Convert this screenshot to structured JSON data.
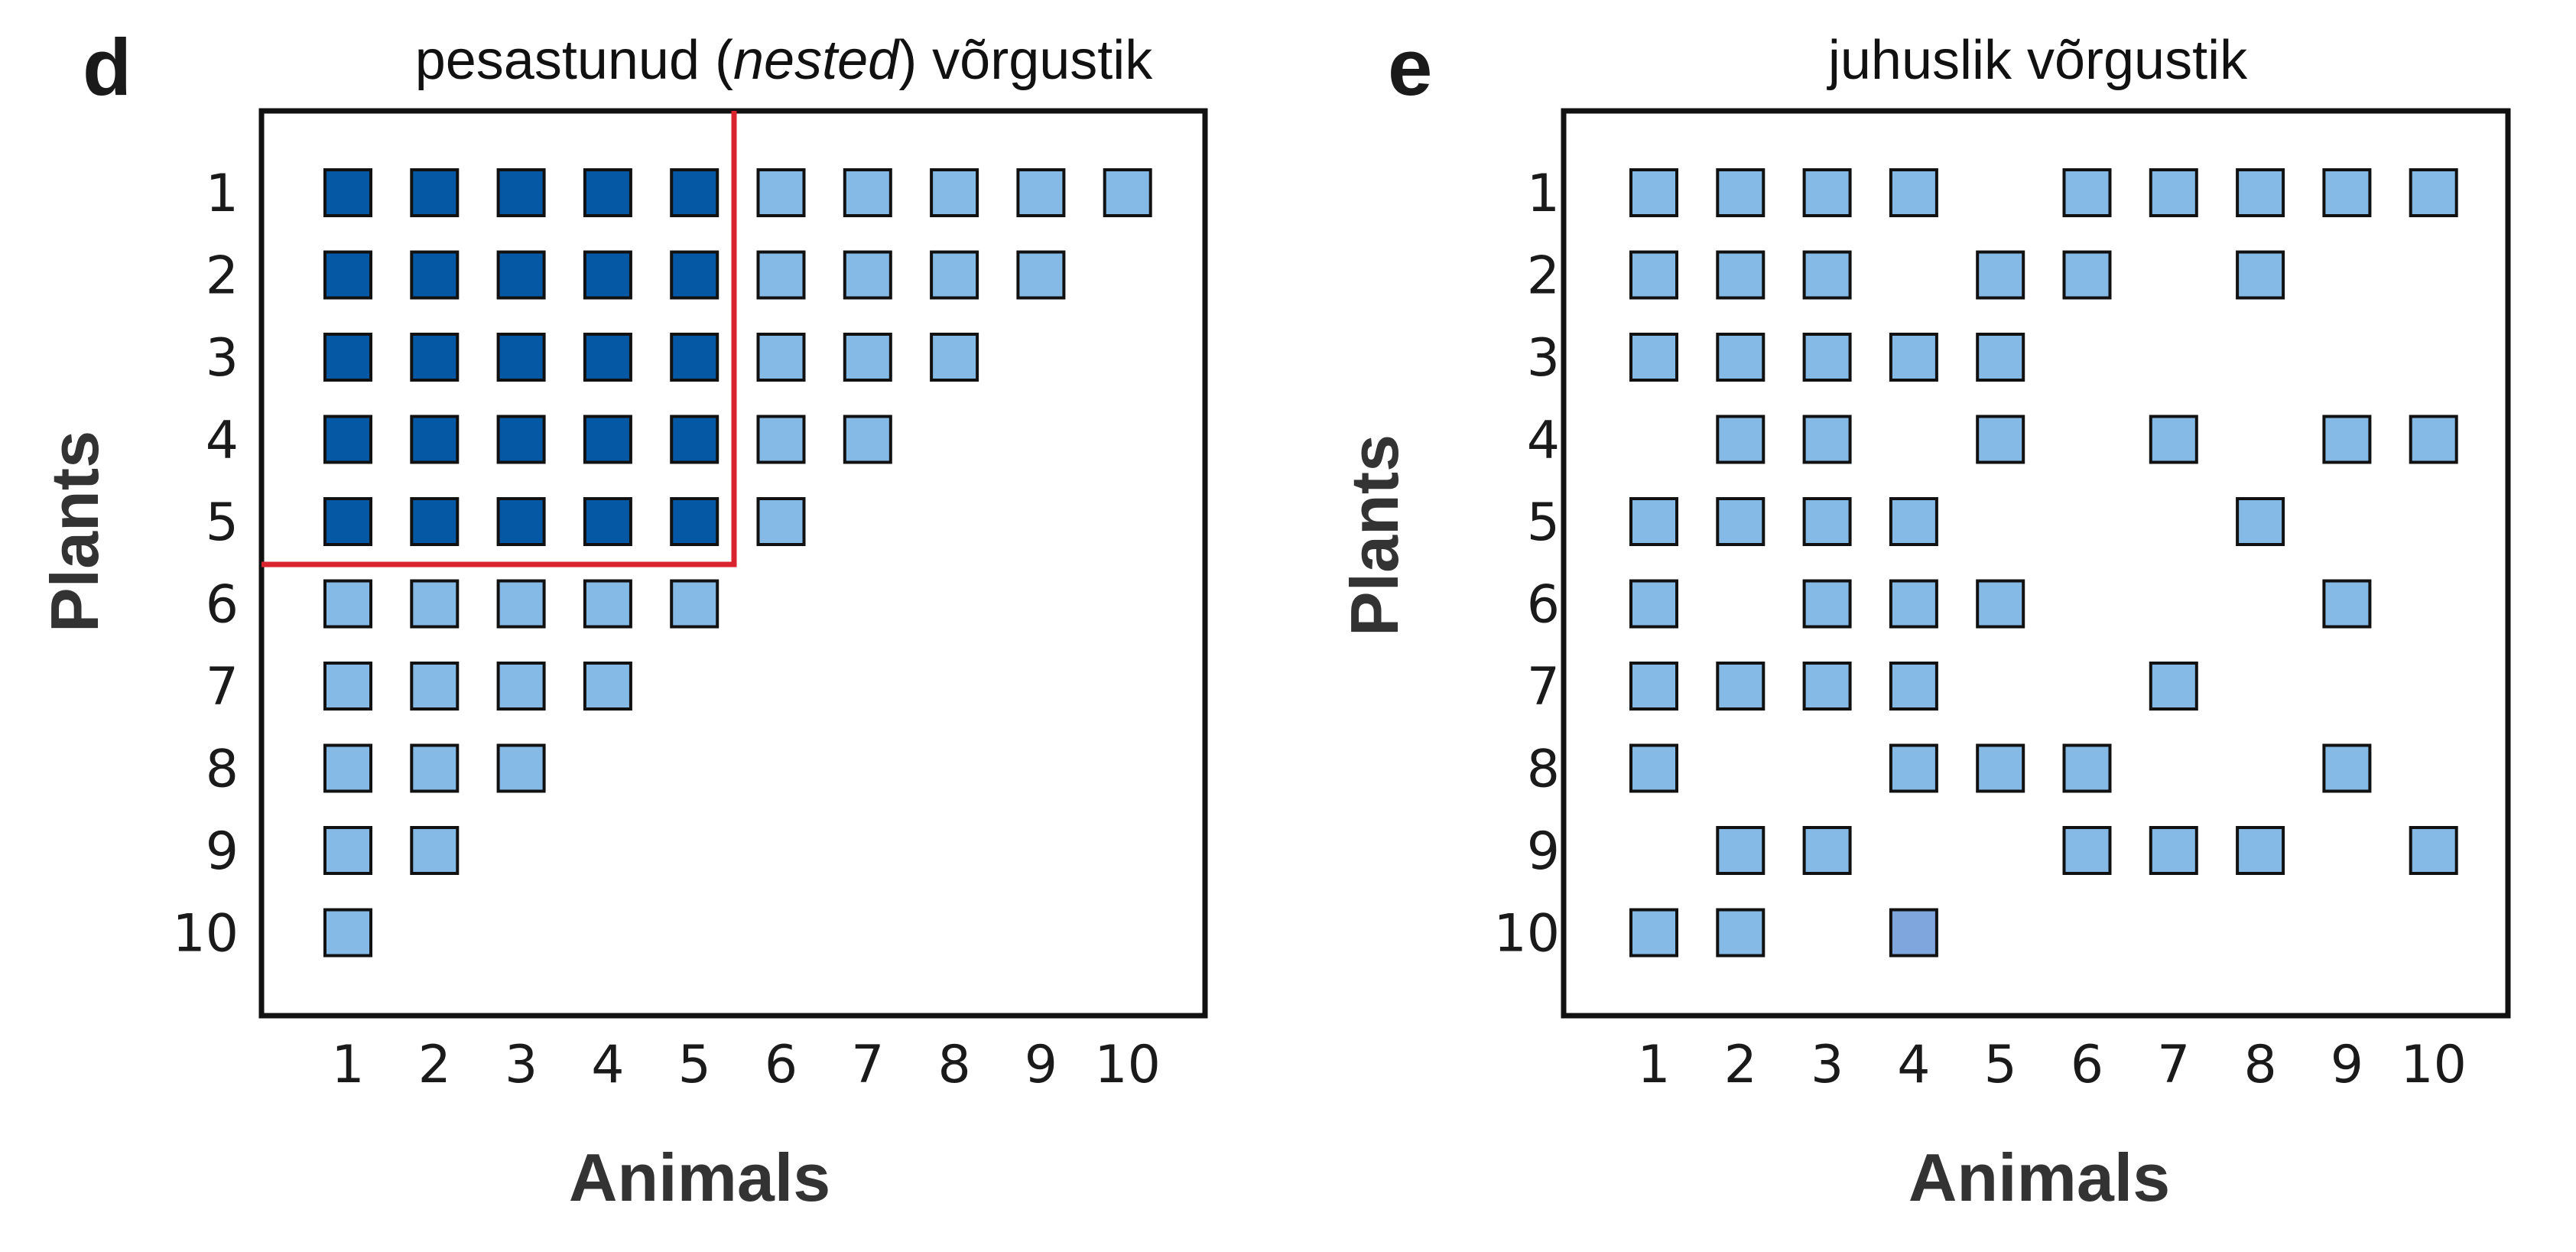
{
  "colors": {
    "dark_cell": "#0559a4",
    "light_cell": "#85b9e6",
    "accent_cell": "#7fa6dd",
    "cell_border": "#111111",
    "frame": "#111111",
    "highlight_line": "#d9232e"
  },
  "chart_data": [
    {
      "type": "heatmap",
      "panel_letter": "d",
      "title_before": "pesastunud (",
      "title_italic": "nested",
      "title_after": ") võrgustik",
      "xlabel": "Animals",
      "ylabel": "Plants",
      "x_ticks": [
        "1",
        "2",
        "3",
        "4",
        "5",
        "6",
        "7",
        "8",
        "9",
        "10"
      ],
      "y_ticks": [
        "1",
        "2",
        "3",
        "4",
        "5",
        "6",
        "7",
        "8",
        "9",
        "10"
      ],
      "grid": false,
      "highlight": {
        "type": "nested-core",
        "animals": [
          1,
          5
        ],
        "plants": [
          1,
          5
        ],
        "color": "#d9232e"
      },
      "cells": [
        {
          "plant": 1,
          "animals": [
            1,
            2,
            3,
            4,
            5,
            6,
            7,
            8,
            9,
            10
          ],
          "dark_animals": [
            1,
            2,
            3,
            4,
            5
          ]
        },
        {
          "plant": 2,
          "animals": [
            1,
            2,
            3,
            4,
            5,
            6,
            7,
            8,
            9
          ],
          "dark_animals": [
            1,
            2,
            3,
            4,
            5
          ]
        },
        {
          "plant": 3,
          "animals": [
            1,
            2,
            3,
            4,
            5,
            6,
            7,
            8
          ],
          "dark_animals": [
            1,
            2,
            3,
            4,
            5
          ]
        },
        {
          "plant": 4,
          "animals": [
            1,
            2,
            3,
            4,
            5,
            6,
            7
          ],
          "dark_animals": [
            1,
            2,
            3,
            4,
            5
          ]
        },
        {
          "plant": 5,
          "animals": [
            1,
            2,
            3,
            4,
            5,
            6
          ],
          "dark_animals": [
            1,
            2,
            3,
            4,
            5
          ]
        },
        {
          "plant": 6,
          "animals": [
            1,
            2,
            3,
            4,
            5
          ],
          "dark_animals": []
        },
        {
          "plant": 7,
          "animals": [
            1,
            2,
            3,
            4
          ],
          "dark_animals": []
        },
        {
          "plant": 8,
          "animals": [
            1,
            2,
            3
          ],
          "dark_animals": []
        },
        {
          "plant": 9,
          "animals": [
            1,
            2
          ],
          "dark_animals": []
        },
        {
          "plant": 10,
          "animals": [
            1
          ],
          "dark_animals": []
        }
      ]
    },
    {
      "type": "heatmap",
      "panel_letter": "e",
      "title_before": "juhuslik võrgustik",
      "title_italic": "",
      "title_after": "",
      "xlabel": "Animals",
      "ylabel": "Plants",
      "x_ticks": [
        "1",
        "2",
        "3",
        "4",
        "5",
        "6",
        "7",
        "8",
        "9",
        "10"
      ],
      "y_ticks": [
        "1",
        "2",
        "3",
        "4",
        "5",
        "6",
        "7",
        "8",
        "9",
        "10"
      ],
      "grid": false,
      "highlight": null,
      "cells": [
        {
          "plant": 1,
          "animals": [
            1,
            2,
            3,
            4,
            6,
            7,
            8,
            9,
            10
          ],
          "dark_animals": []
        },
        {
          "plant": 2,
          "animals": [
            1,
            2,
            3,
            5,
            6,
            8
          ],
          "dark_animals": []
        },
        {
          "plant": 3,
          "animals": [
            1,
            2,
            3,
            4,
            5
          ],
          "dark_animals": []
        },
        {
          "plant": 4,
          "animals": [
            2,
            3,
            5,
            7,
            9,
            10
          ],
          "dark_animals": []
        },
        {
          "plant": 5,
          "animals": [
            1,
            2,
            3,
            4,
            8
          ],
          "dark_animals": []
        },
        {
          "plant": 6,
          "animals": [
            1,
            3,
            4,
            5,
            9
          ],
          "dark_animals": []
        },
        {
          "plant": 7,
          "animals": [
            1,
            2,
            3,
            4,
            7
          ],
          "dark_animals": []
        },
        {
          "plant": 8,
          "animals": [
            1,
            4,
            5,
            6,
            9
          ],
          "dark_animals": []
        },
        {
          "plant": 9,
          "animals": [
            2,
            3,
            6,
            7,
            8,
            10
          ],
          "dark_animals": []
        },
        {
          "plant": 10,
          "animals": [
            1,
            2,
            4
          ],
          "dark_animals": [],
          "accent_animals": [
            4
          ]
        }
      ]
    }
  ]
}
